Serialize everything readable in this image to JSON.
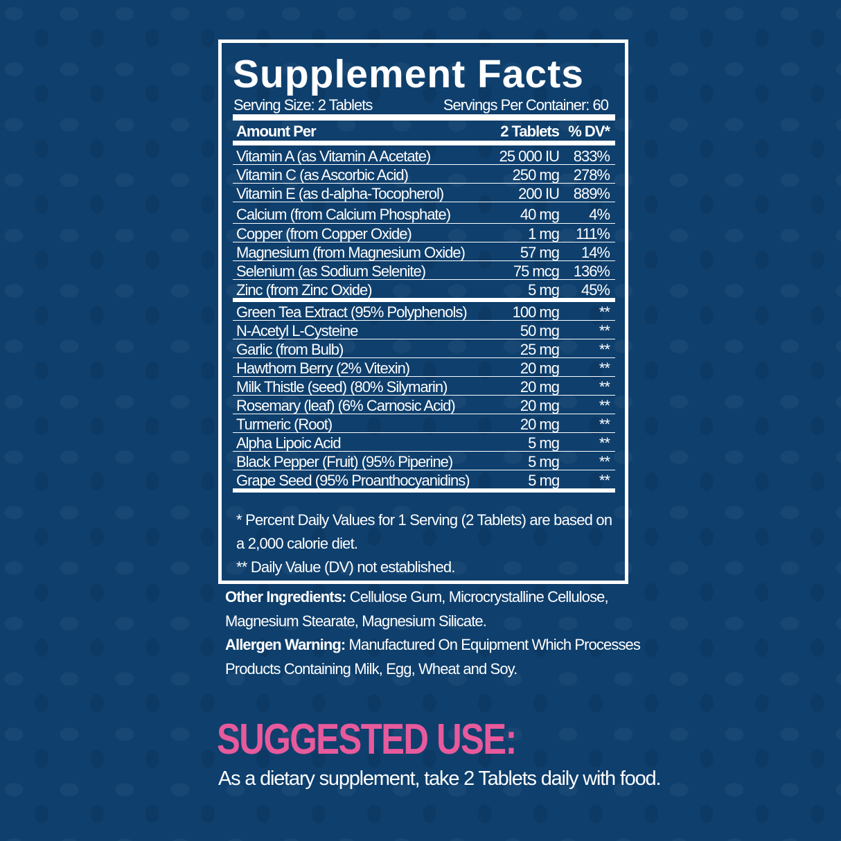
{
  "label": {
    "title": "Supplement Facts",
    "serving_size": "Serving Size: 2 Tablets",
    "servings_per_container": "Servings Per Container: 60",
    "header": {
      "name": "Amount Per",
      "amount": "2 Tablets",
      "dv": "% DV*"
    },
    "rows": [
      {
        "name": "Vitamin A (as Vitamin A Acetate)",
        "amount": "25 000 IU",
        "dv": "833%"
      },
      {
        "name": "Vitamin C (as Ascorbic Acid)",
        "amount": "250 mg",
        "dv": "278%"
      },
      {
        "name": "Vitamin E (as d-alpha-Tocopherol)",
        "amount": "200 IU",
        "dv": "889%"
      },
      {
        "name": "Calcium (from Calcium Phosphate)",
        "amount": "40 mg",
        "dv": "4%"
      },
      {
        "name": "Copper (from Copper Oxide)",
        "amount": "1 mg",
        "dv": "111%"
      },
      {
        "name": "Magnesium (from Magnesium Oxide)",
        "amount": "57 mg",
        "dv": "14%"
      },
      {
        "name": "Selenium (as Sodium Selenite)",
        "amount": "75 mcg",
        "dv": "136%"
      },
      {
        "name": "Zinc (from Zinc Oxide)",
        "amount": "5 mg",
        "dv": "45%"
      },
      {
        "name": "Green Tea Extract (95% Polyphenols)",
        "amount": "100 mg",
        "dv": "**"
      },
      {
        "name": "N-Acetyl L-Cysteine",
        "amount": "50 mg",
        "dv": "**"
      },
      {
        "name": "Garlic (from Bulb)",
        "amount": "25 mg",
        "dv": "**"
      },
      {
        "name": "Hawthorn Berry (2% Vitexin)",
        "amount": "20 mg",
        "dv": "**"
      },
      {
        "name": "Milk Thistle (seed) (80% Silymarin)",
        "amount": "20 mg",
        "dv": "**"
      },
      {
        "name": "Rosemary (leaf) (6% Carnosic Acid)",
        "amount": "20 mg",
        "dv": "**"
      },
      {
        "name": "Turmeric (Root)",
        "amount": "20 mg",
        "dv": "**"
      },
      {
        "name": "Alpha Lipoic Acid",
        "amount": "5 mg",
        "dv": "**"
      },
      {
        "name": "Black Pepper (Fruit) (95% Piperine)",
        "amount": "5 mg",
        "dv": "**"
      },
      {
        "name": "Grape Seed (95% Proanthocyanidins)",
        "amount": "5 mg",
        "dv": "**"
      }
    ],
    "note1a": "* Percent Daily Values for 1 Serving (2 Tablets) are based on",
    "note1b": "a 2,000 calorie diet.",
    "note2": "** Daily Value (DV) not established."
  },
  "other_ingredients": {
    "label": "Other Ingredients:",
    "text": " Cellulose Gum, Microcrystalline Cellulose, Magnesium Stearate, Magnesium Silicate."
  },
  "allergen": {
    "label": "Allergen Warning:",
    "text": " Manufactured On Equipment Which Processes Products Containing Milk, Egg, Wheat and Soy."
  },
  "suggested_use": {
    "heading": "SUGGESTED USE:",
    "text": "As a dietary supplement, take 2 Tablets daily with food."
  },
  "colors": {
    "background": "#0e3f6d",
    "accent": "#e75a9c",
    "text": "#ffffff"
  }
}
